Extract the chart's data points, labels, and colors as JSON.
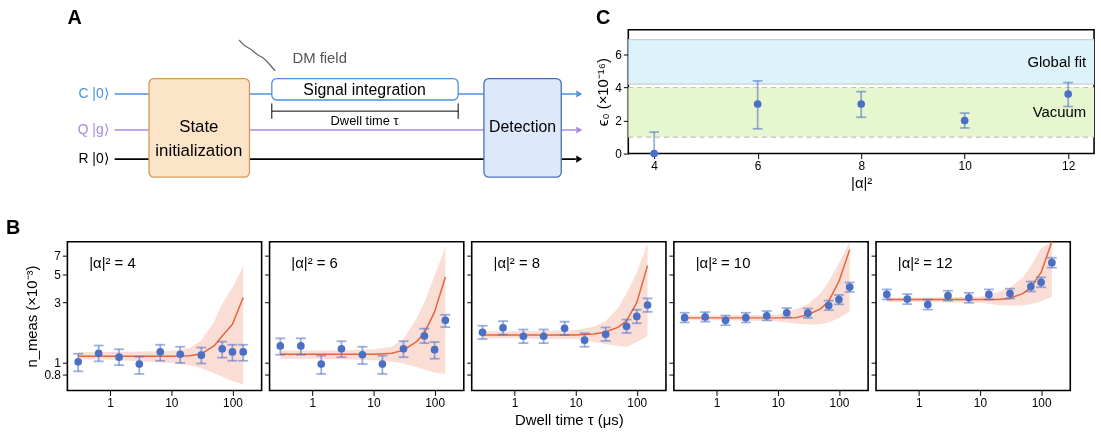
{
  "chart_data": [
    {
      "type": "other",
      "title": "A",
      "annotations": [
        "DM field",
        "Signal integration",
        "Dwell time τ",
        "State initialization",
        "Detection",
        "C |0⟩",
        "Q |g⟩",
        "R |0⟩"
      ]
    },
    {
      "type": "scatter",
      "title": "C",
      "xlabel": "|α|²",
      "ylabel": "ϵ₀ (×10⁻¹⁶)",
      "marker": "circle",
      "x": [
        4,
        6,
        8,
        10,
        12
      ],
      "series": [
        {
          "color": "#4a6fc4",
          "values": [
            0,
            3.0,
            3.0,
            2.0,
            3.6
          ],
          "errors": [
            [
              0,
              1.3
            ],
            [
              1.5,
              4.4
            ],
            [
              2.2,
              3.75
            ],
            [
              1.55,
              2.45
            ],
            [
              2.85,
              4.3
            ]
          ]
        }
      ],
      "xlim": [
        3.5,
        12.5
      ],
      "xticks": [
        4,
        6,
        8,
        10,
        12
      ],
      "ylim": [
        0,
        7.5
      ],
      "yticks": [
        0,
        2,
        4,
        6
      ],
      "bands": [
        {
          "axis": "y",
          "from": 4.2,
          "to": 6.9,
          "label": "Global fit",
          "color": "#dcf3fa"
        },
        {
          "axis": "y",
          "from": 1,
          "to": 4,
          "label": "Vacuum",
          "color": "#e6f6cf"
        }
      ],
      "ref_lines": [
        {
          "axis": "y",
          "value": 1,
          "color": "#c0c0c0",
          "line_style": "dashed"
        },
        {
          "axis": "y",
          "value": 4,
          "color": "#c0c0c0",
          "line_style": "dashed"
        },
        {
          "axis": "y",
          "value": 4.2,
          "color": "#d0d0d0",
          "line_style": "solid"
        },
        {
          "axis": "y",
          "value": 6.9,
          "color": "#d0d0d0",
          "line_style": "solid"
        }
      ]
    },
    {
      "type": "scatter",
      "title": "B",
      "ylabel": "n_meas (×10⁻³)",
      "annotations": [
        "|α|² = 4"
      ],
      "log": "xy",
      "marker": "circle",
      "xlim": [
        0.2,
        300
      ],
      "xticks": [
        1,
        10,
        100
      ],
      "ylim": [
        0.6,
        9
      ],
      "yticks": [
        0.8,
        1,
        3,
        5,
        7
      ],
      "series": [
        {
          "type": "line",
          "marker": "none",
          "color": "#e8643a",
          "x": [
            0.3,
            1,
            3,
            10,
            20,
            31,
            50,
            68,
            100,
            150
          ],
          "values": [
            1.12,
            1.12,
            1.12,
            1.12,
            1.13,
            1.17,
            1.35,
            1.62,
            2.0,
            3.26
          ],
          "upper": [
            1.21,
            1.21,
            1.22,
            1.23,
            1.3,
            1.5,
            2.1,
            2.9,
            3.9,
            5.75
          ],
          "lower": [
            1.06,
            1.05,
            1.02,
            0.99,
            0.95,
            0.9,
            0.82,
            0.77,
            0.71,
            0.67
          ]
        },
        {
          "type": "scatter",
          "color": "#4a6fc4",
          "x": [
            0.3,
            0.65,
            1.4,
            3,
            6.6,
            14,
            31,
            68,
            100,
            150
          ],
          "values": [
            1.01,
            1.18,
            1.1,
            0.97,
            1.21,
            1.16,
            1.14,
            1.28,
            1.21,
            1.21
          ],
          "errors": [
            [
              0.85,
              1.17
            ],
            [
              1.02,
              1.36
            ],
            [
              0.95,
              1.27
            ],
            [
              0.81,
              1.11
            ],
            [
              1.03,
              1.38
            ],
            [
              0.99,
              1.33
            ],
            [
              0.98,
              1.31
            ],
            [
              1.09,
              1.46
            ],
            [
              1.03,
              1.38
            ],
            [
              1.03,
              1.38
            ]
          ]
        }
      ]
    },
    {
      "type": "scatter",
      "annotations": [
        "|α|² = 6"
      ],
      "log": "xy",
      "marker": "circle",
      "tick_labels": "x",
      "xlim": [
        0.2,
        300
      ],
      "xticks": [
        1,
        10,
        100
      ],
      "ylim": [
        0.6,
        9
      ],
      "yticks": [
        0.8,
        1,
        3,
        5,
        7
      ],
      "series": [
        {
          "type": "line",
          "marker": "none",
          "color": "#e8643a",
          "x": [
            0.3,
            1,
            3,
            10,
            20,
            31,
            50,
            68,
            100,
            150
          ],
          "values": [
            1.16,
            1.16,
            1.16,
            1.16,
            1.18,
            1.25,
            1.45,
            1.71,
            2.51,
            4.74
          ],
          "upper": [
            1.24,
            1.24,
            1.25,
            1.27,
            1.33,
            1.53,
            2.2,
            2.97,
            4.88,
            8.2
          ],
          "lower": [
            1.07,
            1.07,
            1.06,
            1.04,
            1.01,
            0.98,
            0.92,
            0.88,
            0.83,
            0.81
          ]
        },
        {
          "type": "scatter",
          "color": "#4a6fc4",
          "x": [
            0.3,
            0.65,
            1.4,
            3,
            6.6,
            14,
            31,
            68,
            100,
            150
          ],
          "values": [
            1.35,
            1.35,
            0.97,
            1.28,
            1.15,
            0.97,
            1.28,
            1.62,
            1.26,
            2.15
          ],
          "errors": [
            [
              1.15,
              1.55
            ],
            [
              1.15,
              1.55
            ],
            [
              0.81,
              1.13
            ],
            [
              1.1,
              1.47
            ],
            [
              0.97,
              1.33
            ],
            [
              0.81,
              1.13
            ],
            [
              1.1,
              1.47
            ],
            [
              1.42,
              1.85
            ],
            [
              1.07,
              1.45
            ],
            [
              1.9,
              2.38
            ]
          ]
        }
      ]
    },
    {
      "type": "scatter",
      "xlabel": "Dwell time τ (μs)",
      "annotations": [
        "|α|² = 8"
      ],
      "log": "xy",
      "marker": "circle",
      "tick_labels": "x",
      "xlim": [
        0.2,
        300
      ],
      "xticks": [
        1,
        10,
        100
      ],
      "ylim": [
        0.6,
        9
      ],
      "yticks": [
        0.8,
        1,
        3,
        5,
        7
      ],
      "series": [
        {
          "type": "line",
          "marker": "none",
          "color": "#e8643a",
          "x": [
            0.3,
            1,
            3,
            10,
            20,
            31,
            50,
            68,
            100,
            150
          ],
          "values": [
            1.65,
            1.65,
            1.65,
            1.65,
            1.68,
            1.74,
            1.9,
            2.13,
            2.97,
            5.83
          ],
          "upper": [
            1.76,
            1.76,
            1.77,
            1.8,
            1.91,
            2.13,
            2.7,
            3.5,
            5.15,
            8.7
          ],
          "lower": [
            1.55,
            1.55,
            1.54,
            1.53,
            1.45,
            1.39,
            1.35,
            1.33,
            1.45,
            1.62
          ]
        },
        {
          "type": "scatter",
          "color": "#4a6fc4",
          "x": [
            0.3,
            0.65,
            1.4,
            3,
            6.6,
            14,
            31,
            68,
            100,
            150
          ],
          "values": [
            1.73,
            1.88,
            1.61,
            1.61,
            1.86,
            1.5,
            1.67,
            1.93,
            2.31,
            2.84
          ],
          "errors": [
            [
              1.53,
              1.95
            ],
            [
              1.66,
              2.12
            ],
            [
              1.42,
              1.82
            ],
            [
              1.42,
              1.82
            ],
            [
              1.65,
              2.1
            ],
            [
              1.33,
              1.7
            ],
            [
              1.48,
              1.89
            ],
            [
              1.71,
              2.18
            ],
            [
              2.04,
              2.61
            ],
            [
              2.51,
              3.21
            ]
          ]
        }
      ]
    },
    {
      "type": "scatter",
      "annotations": [
        "|α|² = 10"
      ],
      "log": "xy",
      "marker": "circle",
      "tick_labels": "x",
      "xlim": [
        0.2,
        300
      ],
      "xticks": [
        1,
        10,
        100
      ],
      "ylim": [
        0.6,
        9
      ],
      "yticks": [
        0.8,
        1,
        3,
        5,
        7
      ],
      "series": [
        {
          "type": "line",
          "marker": "none",
          "color": "#e8643a",
          "x": [
            0.3,
            1,
            3,
            10,
            20,
            31,
            50,
            68,
            100,
            150
          ],
          "values": [
            2.25,
            2.25,
            2.25,
            2.25,
            2.26,
            2.38,
            2.65,
            3.05,
            4.37,
            7.8
          ],
          "upper": [
            2.35,
            2.35,
            2.36,
            2.38,
            2.66,
            2.89,
            3.5,
            4.37,
            6.08,
            9
          ],
          "lower": [
            2.15,
            2.15,
            2.14,
            2.11,
            2.02,
            1.99,
            2.0,
            2.07,
            2.25,
            2.51
          ]
        },
        {
          "type": "scatter",
          "color": "#4a6fc4",
          "x": [
            0.3,
            0.65,
            1.4,
            3,
            6.6,
            14,
            31,
            68,
            100,
            150
          ],
          "values": [
            2.26,
            2.29,
            2.15,
            2.26,
            2.34,
            2.47,
            2.45,
            2.82,
            3.14,
            3.94
          ],
          "errors": [
            [
              2.07,
              2.47
            ],
            [
              2.1,
              2.5
            ],
            [
              1.97,
              2.35
            ],
            [
              2.07,
              2.47
            ],
            [
              2.15,
              2.55
            ],
            [
              2.27,
              2.69
            ],
            [
              2.25,
              2.67
            ],
            [
              2.59,
              3.08
            ],
            [
              2.88,
              3.42
            ],
            [
              3.61,
              4.29
            ]
          ]
        }
      ]
    },
    {
      "type": "scatter",
      "annotations": [
        "|α|² = 12"
      ],
      "log": "xy",
      "marker": "circle",
      "tick_labels": "x",
      "xlim": [
        0.2,
        300
      ],
      "xticks": [
        1,
        10,
        100
      ],
      "ylim": [
        0.6,
        9
      ],
      "yticks": [
        0.8,
        1,
        3,
        5,
        7
      ],
      "series": [
        {
          "type": "line",
          "marker": "none",
          "color": "#e8643a",
          "x": [
            0.3,
            1,
            3,
            10,
            20,
            31,
            50,
            68,
            100,
            150
          ],
          "values": [
            3.14,
            3.14,
            3.14,
            3.14,
            3.14,
            3.22,
            3.5,
            3.91,
            5.15,
            9
          ],
          "upper": [
            3.26,
            3.26,
            3.28,
            3.31,
            3.6,
            3.91,
            4.7,
            5.75,
            8.0,
            9
          ],
          "lower": [
            3.0,
            3.0,
            2.99,
            2.97,
            2.84,
            2.81,
            2.83,
            2.89,
            3.05,
            3.31
          ]
        },
        {
          "type": "scatter",
          "color": "#4a6fc4",
          "x": [
            0.3,
            0.65,
            1.4,
            3,
            6.6,
            14,
            31,
            68,
            100,
            150
          ],
          "values": [
            3.45,
            3.17,
            2.87,
            3.37,
            3.24,
            3.45,
            3.5,
            3.98,
            4.3,
            6.15
          ],
          "errors": [
            [
              3.15,
              3.78
            ],
            [
              2.89,
              3.47
            ],
            [
              2.62,
              3.14
            ],
            [
              3.08,
              3.69
            ],
            [
              2.96,
              3.55
            ],
            [
              3.15,
              3.78
            ],
            [
              3.2,
              3.83
            ],
            [
              3.64,
              4.36
            ],
            [
              3.93,
              4.71
            ],
            [
              5.62,
              6.73
            ]
          ]
        }
      ]
    }
  ]
}
